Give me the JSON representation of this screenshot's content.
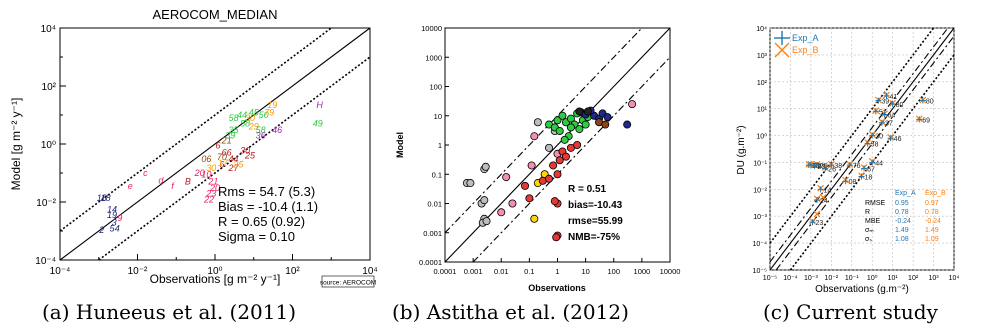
{
  "captions": [
    "(a) Huneeus et al. (2011)",
    "(b) Astitha et al. (2012)",
    "(c) Current study"
  ],
  "chart_data": [
    {
      "type": "scatter",
      "title": "AEROCOM_MEDIAN",
      "xlabel": "Observations [g m⁻² y⁻¹]",
      "ylabel": "Model [g m⁻² y⁻¹]",
      "xscale": "log",
      "yscale": "log",
      "xlim": [
        0.0001,
        10000
      ],
      "ylim": [
        0.0001,
        10000
      ],
      "tick_labels": [
        "10⁻⁴",
        "10⁻²",
        "10⁰",
        "10²",
        "10⁴"
      ],
      "lines": [
        "1:1 solid",
        "×10 dashed",
        "÷10 dashed"
      ],
      "stats": [
        "Rms = 54.7 (5.3)",
        "Bias = -10.4 (1.1)",
        "R = 0.65 (0.92)",
        "Sigma = 0.10"
      ],
      "source_note": "source: AEROCOM",
      "series": [
        {
          "color": "#1a237e",
          "points": [
            {
              "x": 0.0012,
              "y": 0.014,
              "label": "16"
            },
            {
              "x": 0.0015,
              "y": 0.014,
              "label": "18"
            },
            {
              "x": 0.0022,
              "y": 0.0055,
              "label": "14"
            },
            {
              "x": 0.0022,
              "y": 0.0035,
              "label": "19"
            },
            {
              "x": 0.0025,
              "y": 0.002,
              "label": "3"
            },
            {
              "x": 0.003,
              "y": 0.0012,
              "label": "4"
            },
            {
              "x": 0.0012,
              "y": 0.0011,
              "label": "2"
            },
            {
              "x": 0.0022,
              "y": 0.0012,
              "label": "5"
            }
          ]
        },
        {
          "color": "#e91e63",
          "points": [
            {
              "x": 0.0035,
              "y": 0.0028,
              "label": "9"
            },
            {
              "x": 0.0065,
              "y": 0.035,
              "label": "e"
            },
            {
              "x": 0.016,
              "y": 0.1,
              "label": "c"
            },
            {
              "x": 0.04,
              "y": 0.055,
              "label": "d"
            },
            {
              "x": 0.08,
              "y": 0.035,
              "label": "f"
            },
            {
              "x": 0.4,
              "y": 0.1,
              "label": "20"
            },
            {
              "x": 0.6,
              "y": 0.09,
              "label": "10"
            },
            {
              "x": 0.9,
              "y": 0.05,
              "label": "21"
            },
            {
              "x": 1.0,
              "y": 0.03,
              "label": "20"
            },
            {
              "x": 0.8,
              "y": 0.02,
              "label": "23"
            },
            {
              "x": 0.7,
              "y": 0.012,
              "label": "22"
            }
          ]
        },
        {
          "color": "#b71c1c",
          "points": [
            {
              "x": 0.2,
              "y": 0.05,
              "label": "B"
            },
            {
              "x": 1.2,
              "y": 0.9,
              "label": "6"
            },
            {
              "x": 2.0,
              "y": 0.5,
              "label": "66"
            },
            {
              "x": 3.0,
              "y": 0.3,
              "label": "44"
            },
            {
              "x": 6.0,
              "y": 0.6,
              "label": "30"
            },
            {
              "x": 8.0,
              "y": 0.4,
              "label": "25"
            },
            {
              "x": 1.5,
              "y": 0.2,
              "label": "6"
            },
            {
              "x": 3.0,
              "y": 0.15,
              "label": "27"
            }
          ]
        },
        {
          "color": "#8e4b10",
          "points": [
            {
              "x": 0.6,
              "y": 0.3,
              "label": "06"
            },
            {
              "x": 1.5,
              "y": 0.35,
              "label": "70"
            },
            {
              "x": 2.0,
              "y": 1.3,
              "label": "21"
            }
          ]
        },
        {
          "color": "#ff9800",
          "points": [
            {
              "x": 0.8,
              "y": 0.15,
              "label": "30"
            },
            {
              "x": 1.6,
              "y": 0.22,
              "label": "17"
            },
            {
              "x": 4.0,
              "y": 0.2,
              "label": "25"
            },
            {
              "x": 10.0,
              "y": 4.0,
              "label": "29"
            },
            {
              "x": 30.0,
              "y": 22.0,
              "label": "19"
            },
            {
              "x": 25.0,
              "y": 12.0,
              "label": "79"
            },
            {
              "x": 8.0,
              "y": 8.0,
              "label": "30"
            }
          ]
        },
        {
          "color": "#2ecc40",
          "points": [
            {
              "x": 3.0,
              "y": 8.0,
              "label": "58"
            },
            {
              "x": 5.0,
              "y": 10.0,
              "label": "44"
            },
            {
              "x": 10.0,
              "y": 12.0,
              "label": "45"
            },
            {
              "x": 18.0,
              "y": 10.0,
              "label": "50"
            },
            {
              "x": 3.0,
              "y": 3.0,
              "label": "35"
            },
            {
              "x": 6.0,
              "y": 5.0,
              "label": "58"
            },
            {
              "x": 15.0,
              "y": 3.0,
              "label": "58"
            },
            {
              "x": 2.5,
              "y": 2.0,
              "label": "39"
            },
            {
              "x": 450.0,
              "y": 5.0,
              "label": "49"
            }
          ]
        },
        {
          "color": "#9c27b0",
          "points": [
            {
              "x": 40.0,
              "y": 3.0,
              "label": "46"
            },
            {
              "x": 15.0,
              "y": 2.0,
              "label": "36"
            },
            {
              "x": 500.0,
              "y": 22.0,
              "label": "H"
            }
          ]
        }
      ]
    },
    {
      "type": "scatter",
      "xlabel": "Observations",
      "ylabel": "Model",
      "xscale": "log",
      "yscale": "log",
      "xlim": [
        0.0001,
        10000
      ],
      "ylim": [
        0.0001,
        10000
      ],
      "tick_labels": [
        "0.0001",
        "0.001",
        "0.01",
        "0.1",
        "1",
        "10",
        "100",
        "1000",
        "10000"
      ],
      "lines": [
        "1:1 solid",
        "×10 dash-dot",
        "÷10 dash-dot"
      ],
      "stats": [
        "R = 0.51",
        "bias=-10.43",
        "rmse=55.99",
        "NMB=-75%"
      ],
      "series": [
        {
          "color": "#bdbdbd",
          "points": [
            {
              "x": 0.0006,
              "y": 0.05
            },
            {
              "x": 0.0008,
              "y": 0.05
            },
            {
              "x": 0.0025,
              "y": 0.15
            },
            {
              "x": 0.0028,
              "y": 0.18
            },
            {
              "x": 0.002,
              "y": 0.01
            },
            {
              "x": 0.0025,
              "y": 0.013
            },
            {
              "x": 0.0025,
              "y": 0.003
            },
            {
              "x": 0.0022,
              "y": 0.0022
            },
            {
              "x": 0.003,
              "y": 0.0025
            },
            {
              "x": 0.2,
              "y": 6.0
            },
            {
              "x": 0.8,
              "y": 3.0
            },
            {
              "x": 0.5,
              "y": 0.8
            }
          ]
        },
        {
          "color": "#f48fb1",
          "points": [
            {
              "x": 0.01,
              "y": 0.005
            },
            {
              "x": 0.025,
              "y": 0.01
            },
            {
              "x": 0.015,
              "y": 0.08
            },
            {
              "x": 0.12,
              "y": 0.2
            },
            {
              "x": 0.15,
              "y": 2.0
            },
            {
              "x": 1.0,
              "y": 0.5
            },
            {
              "x": 450.0,
              "y": 25.0
            }
          ]
        },
        {
          "color": "#ffd600",
          "points": [
            {
              "x": 0.15,
              "y": 0.003
            },
            {
              "x": 0.2,
              "y": 0.05
            },
            {
              "x": 0.35,
              "y": 0.1
            }
          ]
        },
        {
          "color": "#e53935",
          "points": [
            {
              "x": 0.07,
              "y": 0.04
            },
            {
              "x": 0.1,
              "y": 0.015
            },
            {
              "x": 0.3,
              "y": 0.06
            },
            {
              "x": 0.5,
              "y": 0.07
            },
            {
              "x": 0.7,
              "y": 0.2
            },
            {
              "x": 1.0,
              "y": 0.1
            },
            {
              "x": 1.2,
              "y": 0.3
            },
            {
              "x": 1.5,
              "y": 0.6
            },
            {
              "x": 2.0,
              "y": 0.4
            },
            {
              "x": 3.0,
              "y": 0.8
            },
            {
              "x": 5.0,
              "y": 1.0
            },
            {
              "x": 1.0,
              "y": 0.01
            },
            {
              "x": 0.8,
              "y": 0.012
            },
            {
              "x": 1.0,
              "y": 0.0008
            },
            {
              "x": 0.9,
              "y": 0.0007
            }
          ]
        },
        {
          "color": "#2ecc40",
          "points": [
            {
              "x": 0.5,
              "y": 5.0
            },
            {
              "x": 0.8,
              "y": 4.0
            },
            {
              "x": 1.0,
              "y": 7.0
            },
            {
              "x": 1.2,
              "y": 3.0
            },
            {
              "x": 1.5,
              "y": 10.0
            },
            {
              "x": 2.0,
              "y": 6.0
            },
            {
              "x": 2.5,
              "y": 2.0
            },
            {
              "x": 3.0,
              "y": 8.0
            },
            {
              "x": 4.0,
              "y": 5.0
            },
            {
              "x": 5.0,
              "y": 12.0
            },
            {
              "x": 6.0,
              "y": 3.5
            },
            {
              "x": 8.0,
              "y": 7.0
            },
            {
              "x": 10.0,
              "y": 5.0
            },
            {
              "x": 12.0,
              "y": 9.0
            },
            {
              "x": 3.0,
              "y": 4.0
            },
            {
              "x": 1.8,
              "y": 1.5
            }
          ]
        },
        {
          "color": "#1e2a8a",
          "points": [
            {
              "x": 7.0,
              "y": 13.0
            },
            {
              "x": 10.0,
              "y": 11.0
            },
            {
              "x": 20.0,
              "y": 10.0
            },
            {
              "x": 30.0,
              "y": 8.0
            },
            {
              "x": 40.0,
              "y": 12.0
            },
            {
              "x": 60.0,
              "y": 9.0
            },
            {
              "x": 300.0,
              "y": 5.0
            },
            {
              "x": 15.0,
              "y": 15.0
            }
          ]
        },
        {
          "color": "#8b4513",
          "points": [
            {
              "x": 30.0,
              "y": 6.0
            },
            {
              "x": 50.0,
              "y": 5.0
            }
          ]
        },
        {
          "color": "#222222",
          "points": [
            {
              "x": 6.0,
              "y": 14.0
            },
            {
              "x": 12.0,
              "y": 14.0
            }
          ]
        }
      ]
    },
    {
      "type": "scatter",
      "xlabel": "Observations (g.m⁻²)",
      "ylabel": "DU (g.m⁻²)",
      "xscale": "log",
      "yscale": "log",
      "xlim": [
        1e-05,
        10000
      ],
      "ylim": [
        1e-05,
        10000
      ],
      "tick_labels": [
        "10⁻⁵",
        "10⁻⁴",
        "10⁻³",
        "10⁻²",
        "10⁻¹",
        "10⁰",
        "10¹",
        "10²",
        "10³",
        "10⁴"
      ],
      "grid": true,
      "legend": {
        "position": "top-left",
        "entries": [
          "Exp_A",
          "Exp_B"
        ],
        "colors": [
          "#1f77b4",
          "#ff7f0e"
        ]
      },
      "stats_table": {
        "headers": [
          "",
          "Exp_A",
          "Exp_B"
        ],
        "rows": [
          [
            "RMSE",
            "0.95",
            "0.97"
          ],
          [
            "R",
            "0.78",
            "0.78"
          ],
          [
            "MBE",
            "-0.24",
            "-0.24"
          ],
          [
            "σₘ",
            "1.49",
            "1.49"
          ],
          [
            "σₛ",
            "1.08",
            "1.09"
          ]
        ]
      },
      "series": [
        {
          "name": "Exp_A",
          "color": "#1f77b4",
          "points": [
            {
              "x": 0.0008,
              "y": 0.08,
              "label": "16"
            },
            {
              "x": 0.001,
              "y": 0.08,
              "label": "28"
            },
            {
              "x": 0.0015,
              "y": 0.075,
              "label": "23"
            },
            {
              "x": 0.002,
              "y": 0.08,
              "label": "25"
            },
            {
              "x": 0.002,
              "y": 0.004,
              "label": "24"
            },
            {
              "x": 0.003,
              "y": 0.01,
              "label": "14"
            },
            {
              "x": 0.005,
              "y": 0.06,
              "label": "26"
            },
            {
              "x": 0.01,
              "y": 0.08,
              "label": "38"
            },
            {
              "x": 0.08,
              "y": 0.08,
              "label": "76"
            },
            {
              "x": 0.4,
              "y": 0.06,
              "label": "67"
            },
            {
              "x": 1.0,
              "y": 0.1,
              "label": "44"
            },
            {
              "x": 0.3,
              "y": 0.03,
              "label": "18"
            },
            {
              "x": 0.05,
              "y": 0.02,
              "label": "08"
            },
            {
              "x": 3.0,
              "y": 3.0,
              "label": "37"
            },
            {
              "x": 2.0,
              "y": 20.0,
              "label": "39"
            },
            {
              "x": 5.0,
              "y": 30.0,
              "label": "41"
            },
            {
              "x": 10.0,
              "y": 15.0,
              "label": "80"
            },
            {
              "x": 1.5,
              "y": 8.0,
              "label": "51"
            },
            {
              "x": 4.0,
              "y": 6.0,
              "label": "64"
            },
            {
              "x": 8.0,
              "y": 0.8,
              "label": "46"
            },
            {
              "x": 1.0,
              "y": 1.0,
              "label": "30"
            },
            {
              "x": 0.6,
              "y": 0.5,
              "label": "58"
            },
            {
              "x": 300.0,
              "y": 20.0,
              "label": "80"
            },
            {
              "x": 200.0,
              "y": 4.0,
              "label": "69"
            },
            {
              "x": 0.0012,
              "y": 0.0006,
              "label": "23"
            }
          ]
        },
        {
          "name": "Exp_B",
          "color": "#ff7f0e",
          "points": [
            {
              "x": 0.0008,
              "y": 0.085
            },
            {
              "x": 0.001,
              "y": 0.085
            },
            {
              "x": 0.0015,
              "y": 0.08
            },
            {
              "x": 0.002,
              "y": 0.085
            },
            {
              "x": 0.002,
              "y": 0.0045
            },
            {
              "x": 0.003,
              "y": 0.011
            },
            {
              "x": 0.005,
              "y": 0.065
            },
            {
              "x": 0.01,
              "y": 0.085
            },
            {
              "x": 0.08,
              "y": 0.085
            },
            {
              "x": 0.4,
              "y": 0.065
            },
            {
              "x": 1.0,
              "y": 0.11
            },
            {
              "x": 0.3,
              "y": 0.032
            },
            {
              "x": 0.05,
              "y": 0.022
            },
            {
              "x": 3.0,
              "y": 3.2
            },
            {
              "x": 2.0,
              "y": 21.0
            },
            {
              "x": 5.0,
              "y": 32.0
            },
            {
              "x": 10.0,
              "y": 16.0
            },
            {
              "x": 1.5,
              "y": 8.5
            },
            {
              "x": 4.0,
              "y": 6.5
            },
            {
              "x": 8.0,
              "y": 0.85
            },
            {
              "x": 1.0,
              "y": 1.1
            },
            {
              "x": 0.6,
              "y": 0.55
            },
            {
              "x": 300.0,
              "y": 21.0
            },
            {
              "x": 200.0,
              "y": 4.2
            },
            {
              "x": 0.0012,
              "y": 0.00065
            },
            {
              "x": 0.002,
              "y": 0.0012
            },
            {
              "x": 0.004,
              "y": 0.005
            }
          ]
        }
      ]
    }
  ]
}
